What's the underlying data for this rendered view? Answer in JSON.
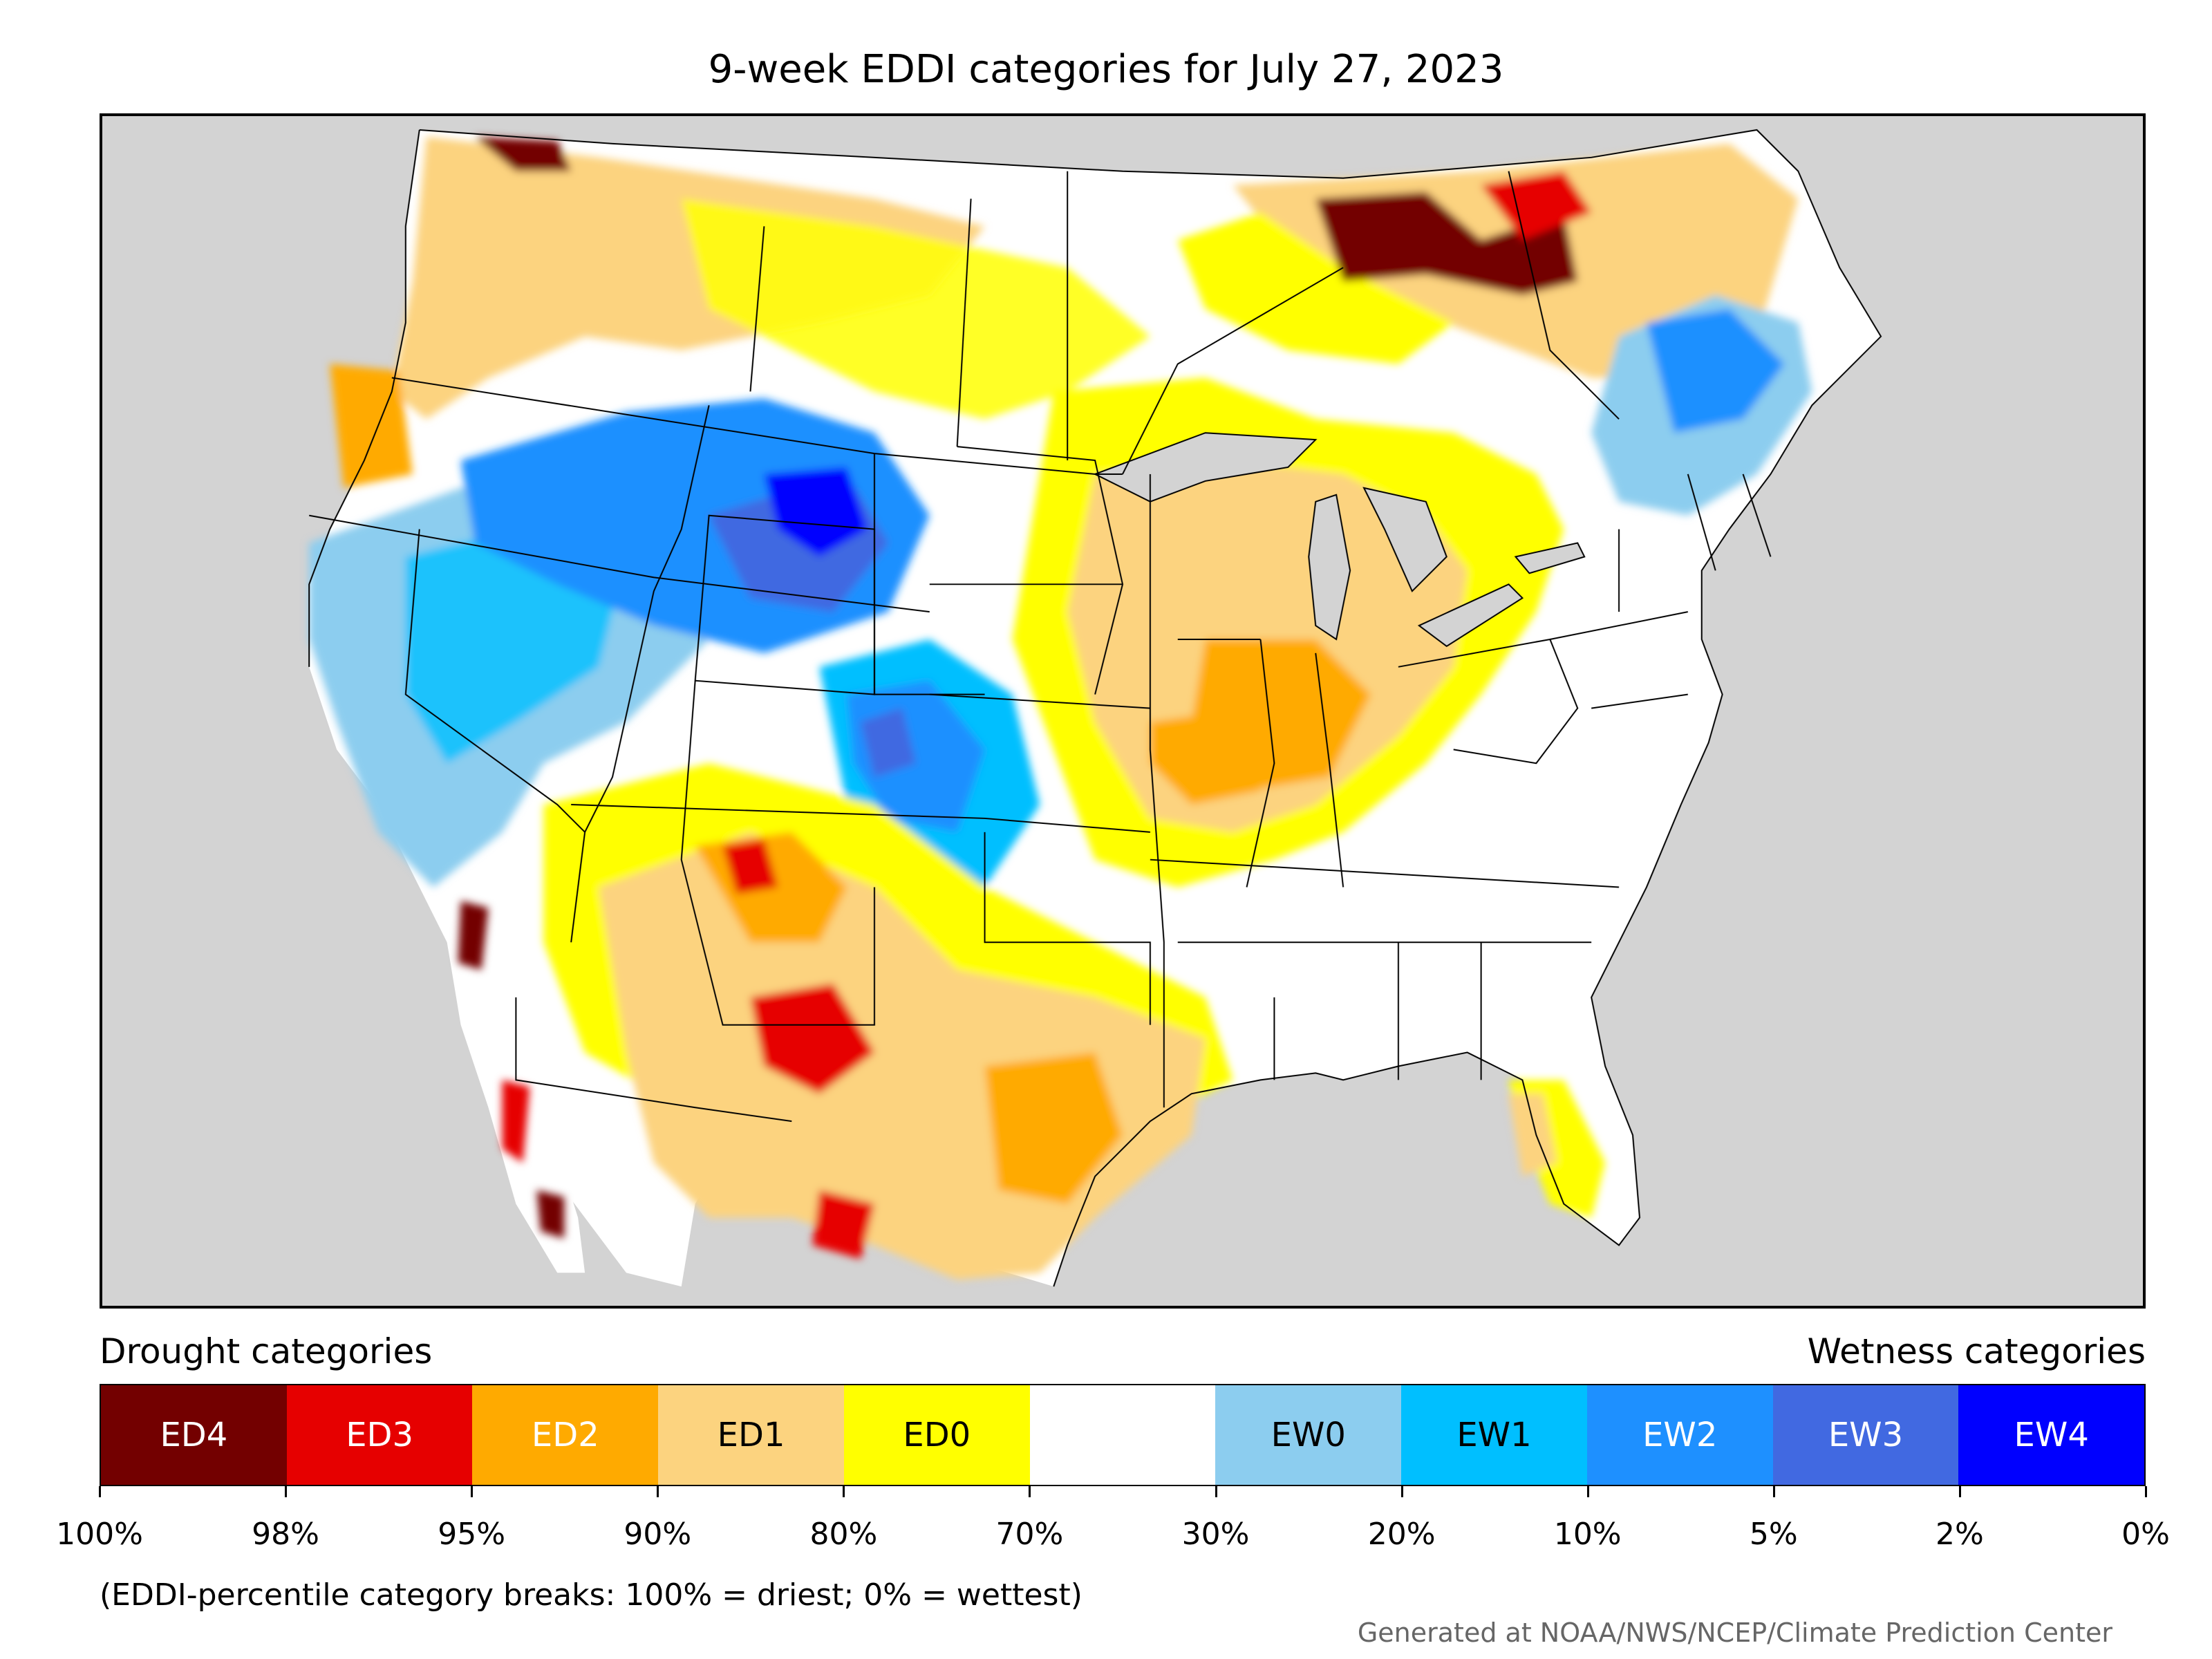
{
  "title": "9-week EDDI categories for July 27, 2023",
  "colors": {
    "ocean": "#d3d3d3",
    "land": "#ffffff",
    "ED4": "#730000",
    "ED3": "#e60000",
    "ED2": "#ffaa00",
    "ED1": "#fcd37f",
    "ED0": "#ffff00",
    "neutral": "#ffffff",
    "EW0": "#8ccdef",
    "EW1": "#00bfff",
    "EW2": "#1e90ff",
    "EW3": "#4169e1",
    "EW4": "#0000ff"
  },
  "map": {
    "regions": [
      {
        "category": "ED1",
        "area": "Pacific Northwest and northern Rockies"
      },
      {
        "category": "ED4",
        "area": "northern Washington border"
      },
      {
        "category": "ED4",
        "area": "southwest Oregon coast"
      },
      {
        "category": "EW2",
        "area": "Idaho, Montana, Wyoming"
      },
      {
        "category": "EW4",
        "area": "central Wyoming"
      },
      {
        "category": "EW1",
        "area": "Nevada and Utah"
      },
      {
        "category": "EW2",
        "area": "Colorado and western Kansas"
      },
      {
        "category": "ED1",
        "area": "Arizona, New Mexico, Texas"
      },
      {
        "category": "ED3",
        "area": "west Texas and southern New Mexico"
      },
      {
        "category": "ED1",
        "area": "Missouri, Illinois, Indiana, Michigan"
      },
      {
        "category": "ED2",
        "area": "southern Illinois and Missouri"
      },
      {
        "category": "ED4",
        "area": "northern Ontario"
      },
      {
        "category": "ED1",
        "area": "southern Quebec"
      },
      {
        "category": "EW2",
        "area": "northern New England"
      },
      {
        "category": "ED0",
        "area": "Great Plains and Florida"
      }
    ]
  },
  "legend": {
    "drought_heading": "Drought categories",
    "wetness_heading": "Wetness categories",
    "cells": [
      {
        "label": "ED4",
        "color": "#730000",
        "text_color": "#ffffff"
      },
      {
        "label": "ED3",
        "color": "#e60000",
        "text_color": "#ffffff"
      },
      {
        "label": "ED2",
        "color": "#ffaa00",
        "text_color": "#ffffff"
      },
      {
        "label": "ED1",
        "color": "#fcd37f",
        "text_color": "#000000"
      },
      {
        "label": "ED0",
        "color": "#ffff00",
        "text_color": "#000000"
      },
      {
        "label": "",
        "color": "#ffffff",
        "text_color": "#000000"
      },
      {
        "label": "EW0",
        "color": "#8ccdef",
        "text_color": "#000000"
      },
      {
        "label": "EW1",
        "color": "#00bfff",
        "text_color": "#000000"
      },
      {
        "label": "EW2",
        "color": "#1e90ff",
        "text_color": "#ffffff"
      },
      {
        "label": "EW3",
        "color": "#4169e1",
        "text_color": "#ffffff"
      },
      {
        "label": "EW4",
        "color": "#0000ff",
        "text_color": "#ffffff"
      }
    ],
    "ticks": [
      "100%",
      "98%",
      "95%",
      "90%",
      "80%",
      "70%",
      "30%",
      "20%",
      "10%",
      "5%",
      "2%",
      "0%"
    ],
    "note": "(EDDI-percentile category breaks: 100% = driest; 0% = wettest)"
  },
  "credit": "Generated at NOAA/NWS/NCEP/Climate Prediction Center"
}
